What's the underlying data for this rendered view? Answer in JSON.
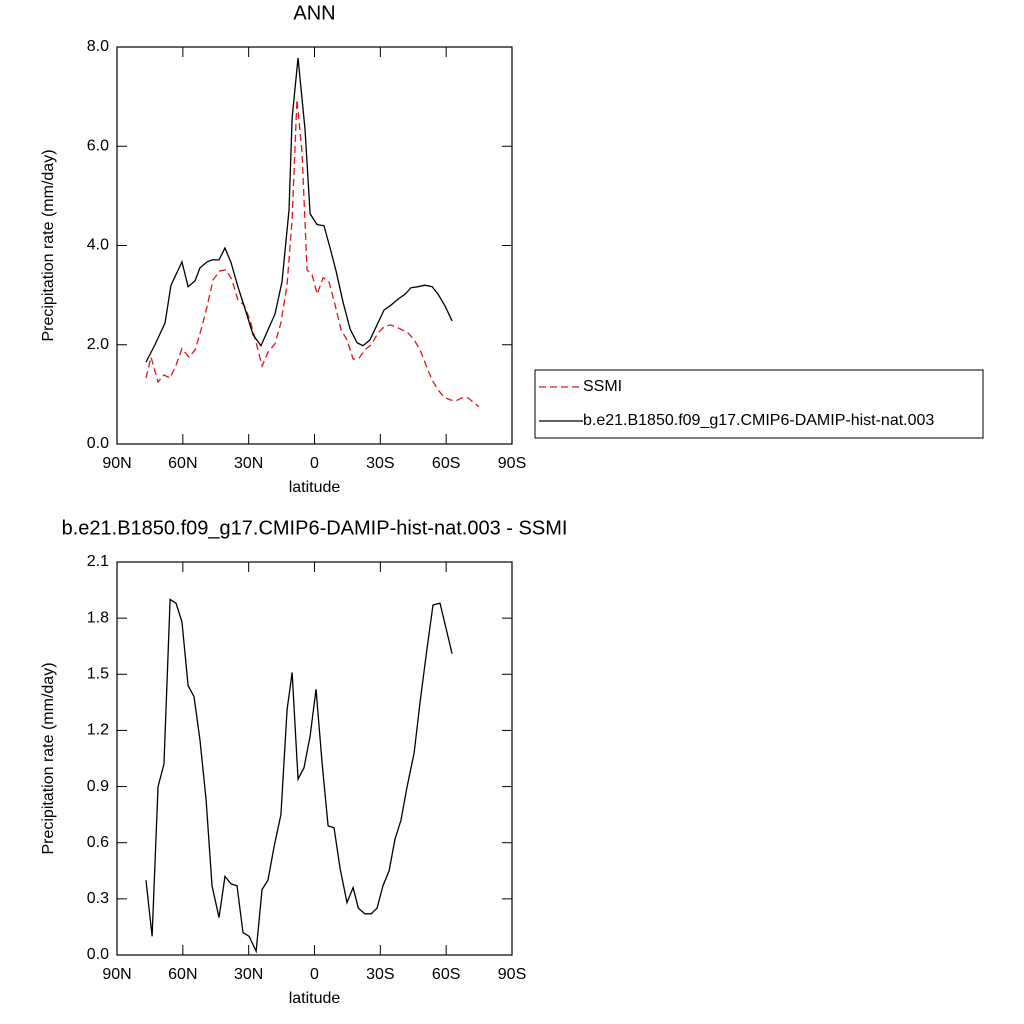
{
  "chart_data": [
    {
      "type": "line",
      "title": "ANN",
      "x_label": "latitude",
      "y_label": "Precipitation rate (mm/day)",
      "xlim": [
        90,
        -90
      ],
      "xticks": [
        {
          "value": 90,
          "label": "90N"
        },
        {
          "value": 60,
          "label": "60N"
        },
        {
          "value": 30,
          "label": "30N"
        },
        0,
        {
          "value": -30,
          "label": "30S"
        },
        {
          "value": -60,
          "label": "60S"
        },
        {
          "value": -90,
          "label": "90S"
        }
      ],
      "ylim": [
        0,
        8
      ],
      "yticks": [
        {
          "value": 0,
          "label": "0.0"
        },
        {
          "value": 2,
          "label": "2.0"
        },
        {
          "value": 4,
          "label": "4.0"
        },
        {
          "value": 6,
          "label": "6.0"
        },
        {
          "value": 8,
          "label": "8.0"
        }
      ],
      "legend": "right",
      "series": [
        {
          "name": "SSMI",
          "color": "#e0161c",
          "dashed": true,
          "x": [
            76.8,
            74.5,
            71.3,
            68.6,
            65.8,
            63.1,
            60.4,
            57.2,
            54.4,
            51.7,
            49.0,
            46.2,
            43.1,
            40.3,
            37.6,
            34.9,
            32.1,
            29.4,
            26.6,
            23.9,
            21.2,
            18.0,
            15.3,
            12.5,
            10.2,
            8.0,
            5.7,
            3.4,
            1.1,
            -1.2,
            -3.9,
            -6.6,
            -9.4,
            -12.1,
            -14.8,
            -17.6,
            -20.3,
            -23.0,
            -25.8,
            -29.0,
            -31.7,
            -34.4,
            -37.2,
            -39.9,
            -42.6,
            -45.4,
            -48.1,
            -50.8,
            -53.6,
            -56.3,
            -59.0,
            -61.8,
            -64.5,
            -67.2,
            -70.0,
            -72.7,
            -75.0
          ],
          "values": [
            1.33,
            1.75,
            1.25,
            1.39,
            1.33,
            1.59,
            1.92,
            1.75,
            1.9,
            2.3,
            2.76,
            3.31,
            3.49,
            3.51,
            3.31,
            2.9,
            2.8,
            2.5,
            2.04,
            1.57,
            1.85,
            2.02,
            2.44,
            3.21,
            4.52,
            6.94,
            5.89,
            3.51,
            3.41,
            3.02,
            3.35,
            3.27,
            2.8,
            2.3,
            2.1,
            1.71,
            1.73,
            1.9,
            2.0,
            2.24,
            2.36,
            2.4,
            2.36,
            2.3,
            2.24,
            2.1,
            1.9,
            1.59,
            1.29,
            1.09,
            0.95,
            0.89,
            0.87,
            0.93,
            0.93,
            0.83,
            0.75
          ]
        },
        {
          "name": "b.e21.B1850.f09_g17.CMIP6-DAMIP-hist-nat.003",
          "color": "#000000",
          "dashed": false,
          "x": [
            76.8,
            72.7,
            68.1,
            65.4,
            60.4,
            57.6,
            54.4,
            52.2,
            49.0,
            46.7,
            43.5,
            40.8,
            38.0,
            34.9,
            31.2,
            28.0,
            24.4,
            21.2,
            18.0,
            14.8,
            11.6,
            10.2,
            7.5,
            4.3,
            2.0,
            -1.2,
            -4.3,
            -7.1,
            -9.8,
            -13.0,
            -16.2,
            -19.4,
            -22.1,
            -25.3,
            -28.5,
            -31.7,
            -34.9,
            -38.1,
            -41.3,
            -44.0,
            -47.2,
            -50.4,
            -53.6,
            -56.3,
            -59.5,
            -62.7
          ],
          "values": [
            1.65,
            2.0,
            2.44,
            3.2,
            3.67,
            3.17,
            3.29,
            3.55,
            3.67,
            3.71,
            3.71,
            3.95,
            3.65,
            3.17,
            2.66,
            2.2,
            1.98,
            2.3,
            2.62,
            3.27,
            4.72,
            6.57,
            7.78,
            6.33,
            4.64,
            4.42,
            4.4,
            3.95,
            3.49,
            2.86,
            2.32,
            2.04,
            1.98,
            2.1,
            2.4,
            2.7,
            2.8,
            2.92,
            3.02,
            3.15,
            3.17,
            3.2,
            3.17,
            3.02,
            2.78,
            2.48
          ]
        }
      ]
    },
    {
      "type": "line",
      "title": "b.e21.B1850.f09_g17.CMIP6-DAMIP-hist-nat.003 - SSMI",
      "x_label": "latitude",
      "y_label": "Precipitation rate (mm/day)",
      "xlim": [
        90,
        -90
      ],
      "xticks": [
        {
          "value": 90,
          "label": "90N"
        },
        {
          "value": 60,
          "label": "60N"
        },
        {
          "value": 30,
          "label": "30N"
        },
        0,
        {
          "value": -30,
          "label": "30S"
        },
        {
          "value": -60,
          "label": "60S"
        },
        {
          "value": -90,
          "label": "90S"
        }
      ],
      "ylim": [
        0,
        2.1
      ],
      "yticks": [
        {
          "value": 0,
          "label": "0.0"
        },
        0.3,
        0.6,
        0.9,
        1.2,
        1.5,
        1.8,
        2.1
      ],
      "series": [
        {
          "color": "#000000",
          "dashed": false,
          "x": [
            76.8,
            74.0,
            71.3,
            68.6,
            65.8,
            63.1,
            60.4,
            57.6,
            54.9,
            52.2,
            49.4,
            46.7,
            43.5,
            40.8,
            38.0,
            35.3,
            32.6,
            29.8,
            26.6,
            23.9,
            21.2,
            18.4,
            15.3,
            12.5,
            10.2,
            7.5,
            4.8,
            2.0,
            -0.7,
            -3.5,
            -6.2,
            -8.9,
            -11.7,
            -14.8,
            -17.6,
            -20.0,
            -23.0,
            -25.8,
            -28.5,
            -31.2,
            -34.0,
            -36.7,
            -39.4,
            -42.2,
            -45.4,
            -48.1,
            -51.3,
            -54.0,
            -57.2,
            -62.7
          ],
          "values": [
            0.4,
            0.1,
            0.9,
            1.02,
            1.9,
            1.88,
            1.78,
            1.44,
            1.38,
            1.15,
            0.83,
            0.37,
            0.2,
            0.42,
            0.38,
            0.37,
            0.12,
            0.1,
            0.02,
            0.35,
            0.4,
            0.58,
            0.75,
            1.31,
            1.51,
            0.94,
            1.0,
            1.17,
            1.42,
            1.02,
            0.69,
            0.68,
            0.46,
            0.28,
            0.36,
            0.25,
            0.22,
            0.22,
            0.25,
            0.37,
            0.45,
            0.62,
            0.72,
            0.9,
            1.08,
            1.35,
            1.64,
            1.87,
            1.88,
            1.61
          ]
        }
      ]
    }
  ]
}
